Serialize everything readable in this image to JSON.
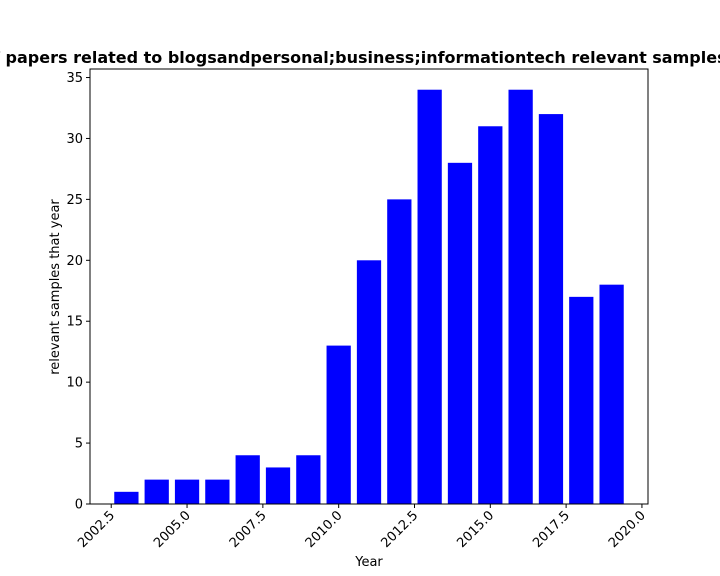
{
  "chart_data": {
    "type": "bar",
    "title": "Number of papers related to blogsandpersonal;business;informationtech relevant samples that year",
    "xlabel": "Year",
    "ylabel": "relevant samples that year",
    "bar_color": "#0000ff",
    "x": [
      2003,
      2004,
      2005,
      2006,
      2007,
      2008,
      2009,
      2010,
      2011,
      2012,
      2013,
      2014,
      2015,
      2016,
      2017,
      2018,
      2019
    ],
    "values": [
      1,
      2,
      2,
      2,
      4,
      3,
      4,
      13,
      20,
      25,
      34,
      28,
      31,
      34,
      32,
      17,
      18
    ],
    "xlim": [
      2001.8,
      2020.2
    ],
    "ylim": [
      0,
      35.7
    ],
    "x_ticks": [
      2002.5,
      2005.0,
      2007.5,
      2010.0,
      2012.5,
      2015.0,
      2017.5,
      2020.0
    ],
    "x_tick_labels": [
      "2002.5",
      "2005.0",
      "2007.5",
      "2010.0",
      "2012.5",
      "2015.0",
      "2017.5",
      "2020.0"
    ],
    "y_ticks": [
      0,
      5,
      10,
      15,
      20,
      25,
      30,
      35
    ],
    "y_tick_labels": [
      "0",
      "5",
      "10",
      "15",
      "20",
      "25",
      "30",
      "35"
    ],
    "grid": false,
    "legend": "none"
  }
}
